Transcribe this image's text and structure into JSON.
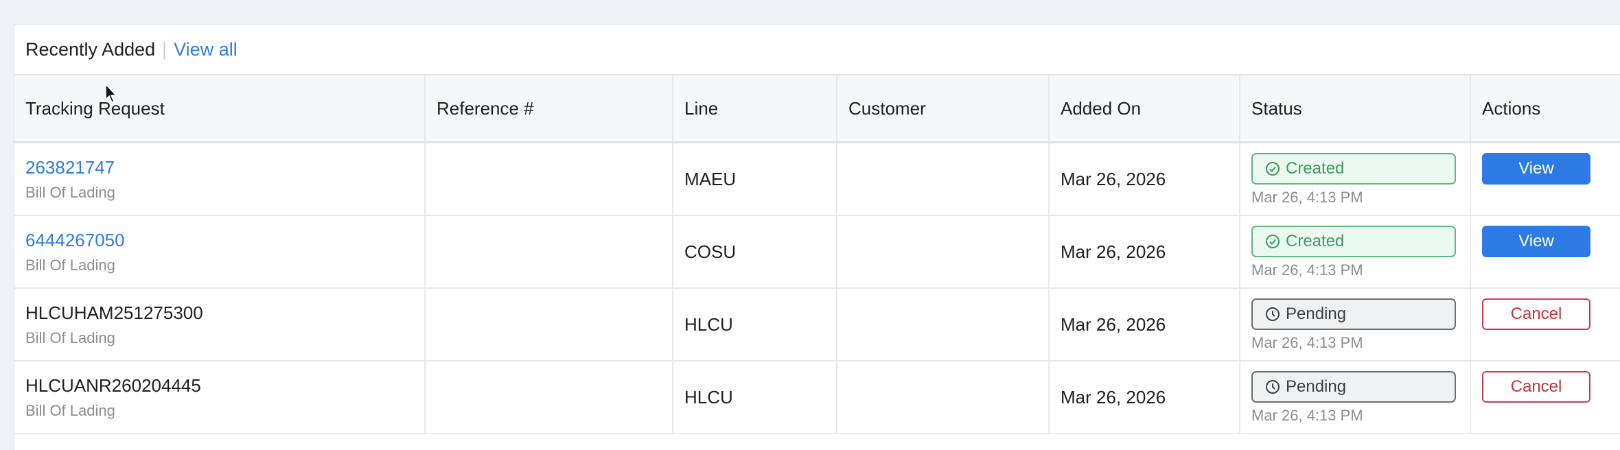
{
  "panel": {
    "title": "Recently Added",
    "separator": "|",
    "view_all": "View all"
  },
  "columns": [
    "Tracking Request",
    "Reference #",
    "Line",
    "Customer",
    "Added On",
    "Status",
    "Actions"
  ],
  "rows": [
    {
      "request": "263821747",
      "request_link": true,
      "type": "Bill Of Lading",
      "reference": "",
      "line": "MAEU",
      "customer": "",
      "added_on": "Mar 26, 2026",
      "status": "Created",
      "status_kind": "created",
      "status_time": "Mar 26, 4:13 PM",
      "action": "View",
      "action_kind": "view"
    },
    {
      "request": "6444267050",
      "request_link": true,
      "type": "Bill Of Lading",
      "reference": "",
      "line": "COSU",
      "customer": "",
      "added_on": "Mar 26, 2026",
      "status": "Created",
      "status_kind": "created",
      "status_time": "Mar 26, 4:13 PM",
      "action": "View",
      "action_kind": "view"
    },
    {
      "request": "HLCUHAM251275300",
      "request_link": false,
      "type": "Bill Of Lading",
      "reference": "",
      "line": "HLCU",
      "customer": "",
      "added_on": "Mar 26, 2026",
      "status": "Pending",
      "status_kind": "pending",
      "status_time": "Mar 26, 4:13 PM",
      "action": "Cancel",
      "action_kind": "cancel"
    },
    {
      "request": "HLCUANR260204445",
      "request_link": false,
      "type": "Bill Of Lading",
      "reference": "",
      "line": "HLCU",
      "customer": "",
      "added_on": "Mar 26, 2026",
      "status": "Pending",
      "status_kind": "pending",
      "status_time": "Mar 26, 4:13 PM",
      "action": "Cancel",
      "action_kind": "cancel"
    }
  ],
  "colors": {
    "link": "#2f7be6",
    "created": "#3a9b62",
    "pending": "#3b3e43",
    "cancel": "#c9303e",
    "view_bg": "#2f7be6"
  },
  "icons": {
    "created": "check-circle-icon",
    "pending": "clock-icon"
  }
}
